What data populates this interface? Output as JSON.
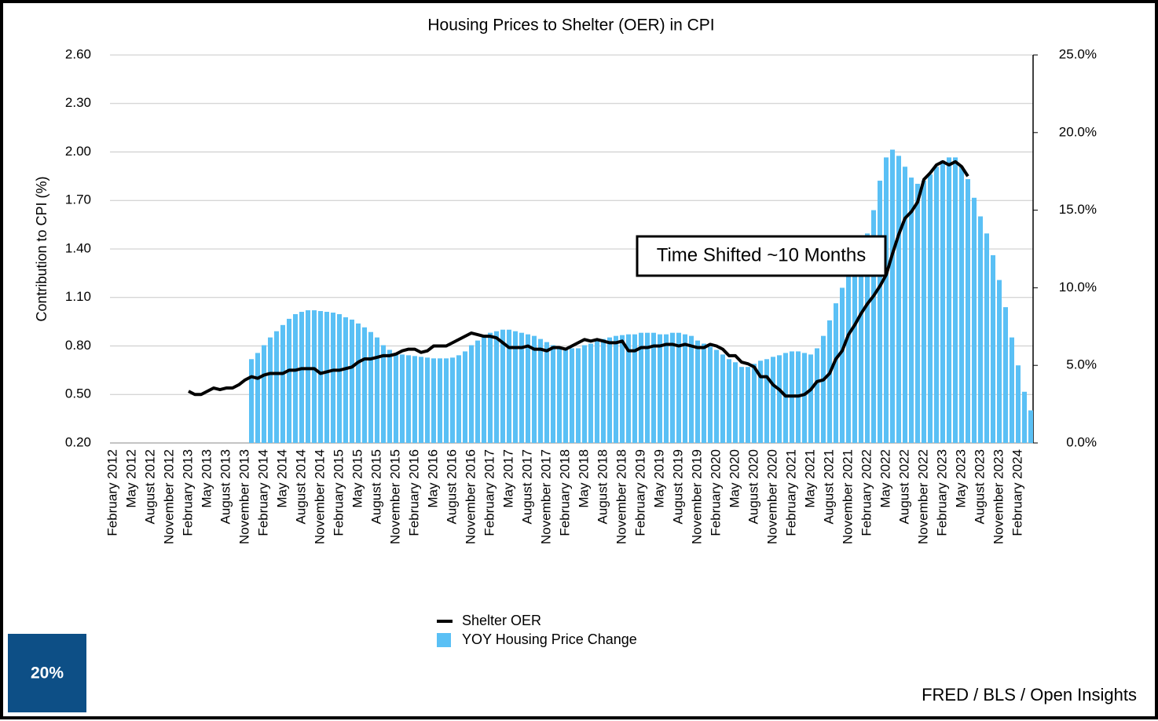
{
  "chart_data": {
    "type": "bar",
    "title": "Housing Prices to Shelter (OER) in CPI",
    "y_label": "Contribution to CPI (%)",
    "annotation": "Time Shifted ~10 Months",
    "badge": "20%",
    "source": "FRED / BLS / Open Insights",
    "categories": [
      "February 2012",
      null,
      null,
      "May 2012",
      null,
      null,
      "August 2012",
      null,
      null,
      "November 2012",
      null,
      null,
      "February 2013",
      null,
      null,
      "May 2013",
      null,
      null,
      "August 2013",
      null,
      null,
      "November 2013",
      null,
      null,
      "February 2014",
      null,
      null,
      "May 2014",
      null,
      null,
      "August 2014",
      null,
      null,
      "November 2014",
      null,
      null,
      "February 2015",
      null,
      null,
      "May 2015",
      null,
      null,
      "August 2015",
      null,
      null,
      "November 2015",
      null,
      null,
      "February 2016",
      null,
      null,
      "May 2016",
      null,
      null,
      "August 2016",
      null,
      null,
      "November 2016",
      null,
      null,
      "February 2017",
      null,
      null,
      "May 2017",
      null,
      null,
      "August 2017",
      null,
      null,
      "November 2017",
      null,
      null,
      "February 2018",
      null,
      null,
      "May 2018",
      null,
      null,
      "August 2018",
      null,
      null,
      "November 2018",
      null,
      null,
      "February 2019",
      null,
      null,
      "May 2019",
      null,
      null,
      "August 2019",
      null,
      null,
      "November 2019",
      null,
      null,
      "February 2020",
      null,
      null,
      "May 2020",
      null,
      null,
      "August 2020",
      null,
      null,
      "November 2020",
      null,
      null,
      "February 2021",
      null,
      null,
      "May 2021",
      null,
      null,
      "August 2021",
      null,
      null,
      "November 2021",
      null,
      null,
      "February 2022",
      null,
      null,
      "May 2022",
      null,
      null,
      "August 2022",
      null,
      null,
      "November 2022",
      null,
      null,
      "February 2023",
      null,
      null,
      "May 2023",
      null,
      null,
      "August 2023",
      null,
      null,
      "November 2023",
      null,
      null,
      "February 2024",
      null,
      null
    ],
    "series": [
      {
        "name": "Shelter OER",
        "type": "line",
        "axis": "y",
        "color": "#000000",
        "values": [
          null,
          null,
          null,
          null,
          null,
          null,
          null,
          null,
          null,
          null,
          null,
          null,
          0.52,
          0.5,
          0.5,
          0.52,
          0.54,
          0.53,
          0.54,
          0.54,
          0.56,
          0.59,
          0.61,
          0.6,
          0.62,
          0.63,
          0.63,
          0.63,
          0.65,
          0.65,
          0.66,
          0.66,
          0.66,
          0.63,
          0.64,
          0.65,
          0.65,
          0.66,
          0.67,
          0.7,
          0.72,
          0.72,
          0.73,
          0.74,
          0.74,
          0.75,
          0.77,
          0.78,
          0.78,
          0.76,
          0.77,
          0.8,
          0.8,
          0.8,
          0.82,
          0.84,
          0.86,
          0.88,
          0.87,
          0.86,
          0.86,
          0.85,
          0.82,
          0.79,
          0.79,
          0.79,
          0.8,
          0.78,
          0.78,
          0.77,
          0.79,
          0.79,
          0.78,
          0.8,
          0.82,
          0.84,
          0.83,
          0.84,
          0.83,
          0.82,
          0.82,
          0.83,
          0.77,
          0.77,
          0.79,
          0.79,
          0.8,
          0.8,
          0.81,
          0.81,
          0.8,
          0.81,
          0.8,
          0.79,
          0.79,
          0.81,
          0.8,
          0.78,
          0.74,
          0.74,
          0.7,
          0.69,
          0.67,
          0.61,
          0.61,
          0.56,
          0.53,
          0.49,
          0.49,
          0.49,
          0.5,
          0.53,
          0.58,
          0.59,
          0.63,
          0.72,
          0.77,
          0.87,
          0.93,
          1.0,
          1.06,
          1.11,
          1.17,
          1.24,
          1.37,
          1.49,
          1.59,
          1.63,
          1.69,
          1.83,
          1.87,
          1.92,
          1.94,
          1.92,
          1.94,
          1.91,
          1.85,
          null,
          null,
          null,
          null,
          null,
          null,
          null,
          null,
          null,
          null
        ]
      },
      {
        "name": "YOY Housing Price Change",
        "type": "bar",
        "axis": "y2",
        "color": "#5ac0f5",
        "values": [
          null,
          null,
          null,
          null,
          null,
          null,
          null,
          null,
          null,
          null,
          null,
          null,
          null,
          null,
          null,
          null,
          null,
          null,
          null,
          null,
          null,
          null,
          5.4,
          5.8,
          6.3,
          6.8,
          7.2,
          7.6,
          8.0,
          8.3,
          8.45,
          8.55,
          8.55,
          8.5,
          8.45,
          8.4,
          8.3,
          8.1,
          7.95,
          7.7,
          7.45,
          7.15,
          6.8,
          6.3,
          6.0,
          5.8,
          5.7,
          5.65,
          5.6,
          5.55,
          5.5,
          5.45,
          5.45,
          5.45,
          5.5,
          5.65,
          5.9,
          6.3,
          6.6,
          6.9,
          7.1,
          7.2,
          7.3,
          7.3,
          7.2,
          7.1,
          7.0,
          6.9,
          6.7,
          6.5,
          6.3,
          6.2,
          6.1,
          6.1,
          6.1,
          6.3,
          6.4,
          6.6,
          6.7,
          6.8,
          6.9,
          6.95,
          7.0,
          7.0,
          7.1,
          7.1,
          7.1,
          7.0,
          7.0,
          7.1,
          7.1,
          7.0,
          6.9,
          6.6,
          6.4,
          6.2,
          6.0,
          5.7,
          5.4,
          5.2,
          4.9,
          4.9,
          5.1,
          5.3,
          5.4,
          5.55,
          5.65,
          5.8,
          5.9,
          5.9,
          5.8,
          5.7,
          6.1,
          6.9,
          7.9,
          9.0,
          10.0,
          10.9,
          11.8,
          12.6,
          13.5,
          15.0,
          16.9,
          18.4,
          18.9,
          18.5,
          17.8,
          17.1,
          16.7,
          16.9,
          17.3,
          17.8,
          18.2,
          18.4,
          18.4,
          17.8,
          17.0,
          15.8,
          14.6,
          13.5,
          12.1,
          10.5,
          8.75,
          6.8,
          5.0,
          3.3,
          2.1
        ]
      }
    ],
    "ylim": [
      0.2,
      2.6
    ],
    "yticks": [
      {
        "value": 0.2,
        "label": "0.20"
      },
      {
        "value": 0.5,
        "label": "0.50"
      },
      {
        "value": 0.8,
        "label": "0.80"
      },
      {
        "value": 1.1,
        "label": "1.10"
      },
      {
        "value": 1.4,
        "label": "1.40"
      },
      {
        "value": 1.7,
        "label": "1.70"
      },
      {
        "value": 2.0,
        "label": "2.00"
      },
      {
        "value": 2.3,
        "label": "2.30"
      },
      {
        "value": 2.6,
        "label": "2.60"
      }
    ],
    "y2lim": [
      0,
      25
    ],
    "y2ticks": [
      {
        "value": 0,
        "label": "0.0%"
      },
      {
        "value": 5,
        "label": "5.0%"
      },
      {
        "value": 10,
        "label": "10.0%"
      },
      {
        "value": 15,
        "label": "15.0%"
      },
      {
        "value": 20,
        "label": "20.0%"
      },
      {
        "value": 25,
        "label": "25.0%"
      }
    ],
    "grid": true,
    "legend": "bottom"
  }
}
